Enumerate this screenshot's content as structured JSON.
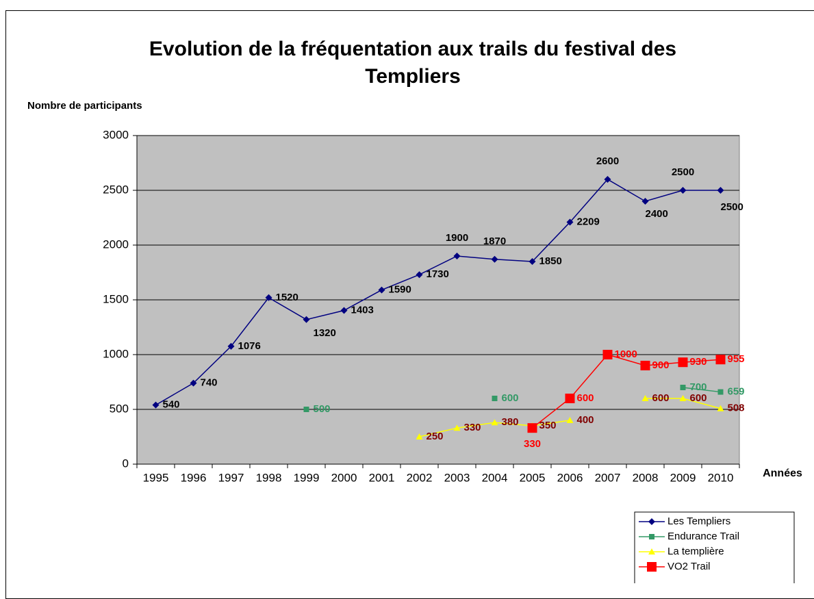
{
  "chart_data": {
    "type": "line",
    "title": "Evolution de la fréquentation aux trails du festival des Templiers",
    "y_label": "Nombre de participants",
    "x_label": "Années",
    "categories": [
      "1995",
      "1996",
      "1997",
      "1998",
      "1999",
      "2000",
      "2001",
      "2002",
      "2003",
      "2004",
      "2005",
      "2006",
      "2007",
      "2008",
      "2009",
      "2010"
    ],
    "series": [
      {
        "name": "Les Templiers",
        "color": "#000080",
        "label_color": "#000000",
        "marker": "diamond",
        "values": [
          540,
          740,
          1076,
          1520,
          1320,
          1403,
          1590,
          1730,
          1900,
          1870,
          1850,
          2209,
          2600,
          2400,
          2500,
          2500
        ]
      },
      {
        "name": "Endurance Trail",
        "color": "#339966",
        "label_color": "#339966",
        "marker": "square",
        "values": [
          null,
          null,
          null,
          null,
          500,
          null,
          null,
          null,
          null,
          600,
          null,
          null,
          null,
          null,
          700,
          659
        ]
      },
      {
        "name": "La templière",
        "color": "#ffff00",
        "label_color": "#800000",
        "marker": "triangle",
        "values": [
          null,
          null,
          null,
          null,
          null,
          null,
          null,
          250,
          330,
          380,
          350,
          400,
          null,
          600,
          600,
          508
        ]
      },
      {
        "name": "VO2 Trail",
        "color": "#ff0000",
        "label_color": "#ff0000",
        "marker": "bigsquare",
        "values": [
          null,
          null,
          null,
          null,
          null,
          null,
          null,
          null,
          null,
          null,
          330,
          600,
          1000,
          900,
          930,
          955
        ]
      }
    ],
    "ylim": [
      0,
      3000
    ],
    "yticks": [
      0,
      500,
      1000,
      1500,
      2000,
      2500,
      3000
    ],
    "plot_background": "#c0c0c0",
    "grid": true,
    "legend": "bottom-right"
  }
}
